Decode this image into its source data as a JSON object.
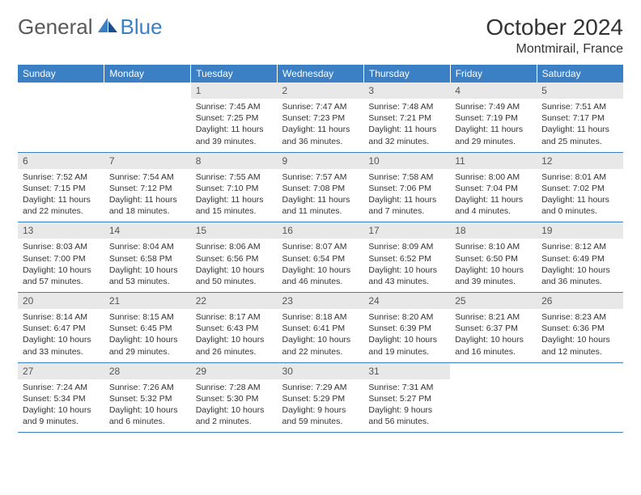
{
  "brand": {
    "part1": "General",
    "part2": "Blue"
  },
  "title": "October 2024",
  "location": "Montmirail, France",
  "header_bg": "#3b7fc4",
  "header_text": "#ffffff",
  "daynum_bg": "#e8e8e8",
  "divider_color": "#3b7fc4",
  "weekdays": [
    "Sunday",
    "Monday",
    "Tuesday",
    "Wednesday",
    "Thursday",
    "Friday",
    "Saturday"
  ],
  "weeks": [
    [
      null,
      null,
      {
        "n": "1",
        "sr": "Sunrise: 7:45 AM",
        "ss": "Sunset: 7:25 PM",
        "dl": "Daylight: 11 hours and 39 minutes."
      },
      {
        "n": "2",
        "sr": "Sunrise: 7:47 AM",
        "ss": "Sunset: 7:23 PM",
        "dl": "Daylight: 11 hours and 36 minutes."
      },
      {
        "n": "3",
        "sr": "Sunrise: 7:48 AM",
        "ss": "Sunset: 7:21 PM",
        "dl": "Daylight: 11 hours and 32 minutes."
      },
      {
        "n": "4",
        "sr": "Sunrise: 7:49 AM",
        "ss": "Sunset: 7:19 PM",
        "dl": "Daylight: 11 hours and 29 minutes."
      },
      {
        "n": "5",
        "sr": "Sunrise: 7:51 AM",
        "ss": "Sunset: 7:17 PM",
        "dl": "Daylight: 11 hours and 25 minutes."
      }
    ],
    [
      {
        "n": "6",
        "sr": "Sunrise: 7:52 AM",
        "ss": "Sunset: 7:15 PM",
        "dl": "Daylight: 11 hours and 22 minutes."
      },
      {
        "n": "7",
        "sr": "Sunrise: 7:54 AM",
        "ss": "Sunset: 7:12 PM",
        "dl": "Daylight: 11 hours and 18 minutes."
      },
      {
        "n": "8",
        "sr": "Sunrise: 7:55 AM",
        "ss": "Sunset: 7:10 PM",
        "dl": "Daylight: 11 hours and 15 minutes."
      },
      {
        "n": "9",
        "sr": "Sunrise: 7:57 AM",
        "ss": "Sunset: 7:08 PM",
        "dl": "Daylight: 11 hours and 11 minutes."
      },
      {
        "n": "10",
        "sr": "Sunrise: 7:58 AM",
        "ss": "Sunset: 7:06 PM",
        "dl": "Daylight: 11 hours and 7 minutes."
      },
      {
        "n": "11",
        "sr": "Sunrise: 8:00 AM",
        "ss": "Sunset: 7:04 PM",
        "dl": "Daylight: 11 hours and 4 minutes."
      },
      {
        "n": "12",
        "sr": "Sunrise: 8:01 AM",
        "ss": "Sunset: 7:02 PM",
        "dl": "Daylight: 11 hours and 0 minutes."
      }
    ],
    [
      {
        "n": "13",
        "sr": "Sunrise: 8:03 AM",
        "ss": "Sunset: 7:00 PM",
        "dl": "Daylight: 10 hours and 57 minutes."
      },
      {
        "n": "14",
        "sr": "Sunrise: 8:04 AM",
        "ss": "Sunset: 6:58 PM",
        "dl": "Daylight: 10 hours and 53 minutes."
      },
      {
        "n": "15",
        "sr": "Sunrise: 8:06 AM",
        "ss": "Sunset: 6:56 PM",
        "dl": "Daylight: 10 hours and 50 minutes."
      },
      {
        "n": "16",
        "sr": "Sunrise: 8:07 AM",
        "ss": "Sunset: 6:54 PM",
        "dl": "Daylight: 10 hours and 46 minutes."
      },
      {
        "n": "17",
        "sr": "Sunrise: 8:09 AM",
        "ss": "Sunset: 6:52 PM",
        "dl": "Daylight: 10 hours and 43 minutes."
      },
      {
        "n": "18",
        "sr": "Sunrise: 8:10 AM",
        "ss": "Sunset: 6:50 PM",
        "dl": "Daylight: 10 hours and 39 minutes."
      },
      {
        "n": "19",
        "sr": "Sunrise: 8:12 AM",
        "ss": "Sunset: 6:49 PM",
        "dl": "Daylight: 10 hours and 36 minutes."
      }
    ],
    [
      {
        "n": "20",
        "sr": "Sunrise: 8:14 AM",
        "ss": "Sunset: 6:47 PM",
        "dl": "Daylight: 10 hours and 33 minutes."
      },
      {
        "n": "21",
        "sr": "Sunrise: 8:15 AM",
        "ss": "Sunset: 6:45 PM",
        "dl": "Daylight: 10 hours and 29 minutes."
      },
      {
        "n": "22",
        "sr": "Sunrise: 8:17 AM",
        "ss": "Sunset: 6:43 PM",
        "dl": "Daylight: 10 hours and 26 minutes."
      },
      {
        "n": "23",
        "sr": "Sunrise: 8:18 AM",
        "ss": "Sunset: 6:41 PM",
        "dl": "Daylight: 10 hours and 22 minutes."
      },
      {
        "n": "24",
        "sr": "Sunrise: 8:20 AM",
        "ss": "Sunset: 6:39 PM",
        "dl": "Daylight: 10 hours and 19 minutes."
      },
      {
        "n": "25",
        "sr": "Sunrise: 8:21 AM",
        "ss": "Sunset: 6:37 PM",
        "dl": "Daylight: 10 hours and 16 minutes."
      },
      {
        "n": "26",
        "sr": "Sunrise: 8:23 AM",
        "ss": "Sunset: 6:36 PM",
        "dl": "Daylight: 10 hours and 12 minutes."
      }
    ],
    [
      {
        "n": "27",
        "sr": "Sunrise: 7:24 AM",
        "ss": "Sunset: 5:34 PM",
        "dl": "Daylight: 10 hours and 9 minutes."
      },
      {
        "n": "28",
        "sr": "Sunrise: 7:26 AM",
        "ss": "Sunset: 5:32 PM",
        "dl": "Daylight: 10 hours and 6 minutes."
      },
      {
        "n": "29",
        "sr": "Sunrise: 7:28 AM",
        "ss": "Sunset: 5:30 PM",
        "dl": "Daylight: 10 hours and 2 minutes."
      },
      {
        "n": "30",
        "sr": "Sunrise: 7:29 AM",
        "ss": "Sunset: 5:29 PM",
        "dl": "Daylight: 9 hours and 59 minutes."
      },
      {
        "n": "31",
        "sr": "Sunrise: 7:31 AM",
        "ss": "Sunset: 5:27 PM",
        "dl": "Daylight: 9 hours and 56 minutes."
      },
      null,
      null
    ]
  ]
}
